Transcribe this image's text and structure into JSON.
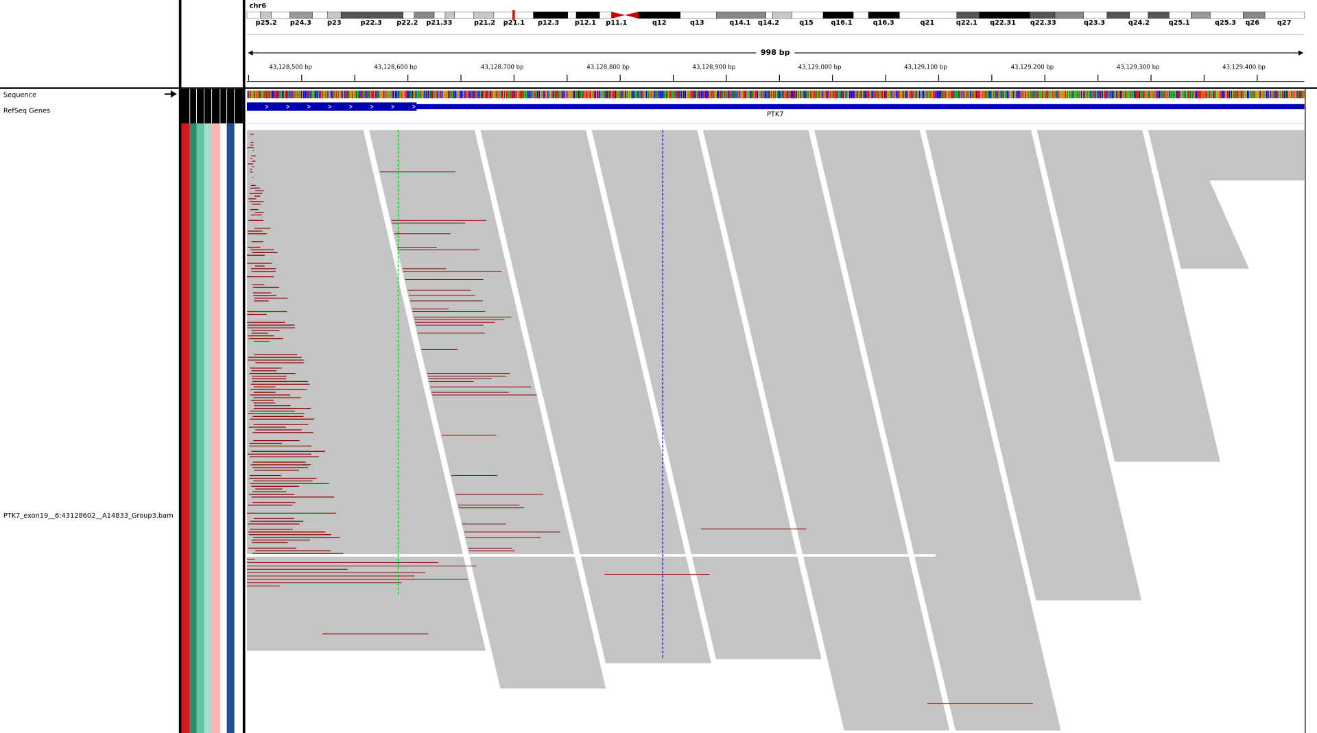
{
  "chromosome": "chr6",
  "cytobands": [
    "p25.2",
    "p24.3",
    "p23",
    "p22.3",
    "p22.2",
    "p21.33",
    "p21.2",
    "p21.1",
    "p12.3",
    "p12.1",
    "p11.1",
    "q12",
    "q13",
    "q14.1",
    "q14.2",
    "q15",
    "q16.1",
    "q16.3",
    "q21",
    "q22.1",
    "q22.31",
    "q22.33",
    "q23.3",
    "q24.2",
    "q25.1",
    "q25.3",
    "q26",
    "q27"
  ],
  "region_width": "998 bp",
  "ruler_ticks": [
    "43,128,500 bp",
    "43,128,600 bp",
    "43,128,700 bp",
    "43,128,800 bp",
    "43,128,900 bp",
    "43,129,000 bp",
    "43,129,100 bp",
    "43,129,200 bp",
    "43,129,300 bp",
    "43,129,400 bp"
  ],
  "tracks": {
    "sequence": "Sequence",
    "refseq": "RefSeq Genes",
    "gene": "PTK7",
    "alignment": "PTK7_exon19__6:43128602__A14833_Group3.bam"
  }
}
